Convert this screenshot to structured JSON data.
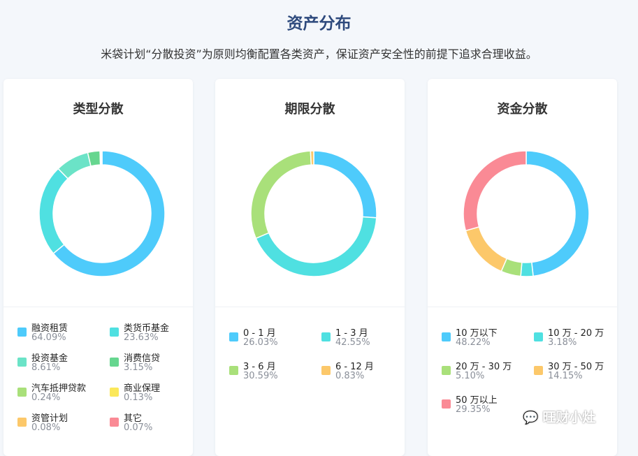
{
  "header": {
    "title": "资产分布",
    "subtitle": "米袋计划“分散投资”为原则均衡配置各类资产，保证资产安全性的前提下追求合理收益。"
  },
  "cards": [
    {
      "title": "类型分散",
      "legend": [
        {
          "label": "融资租赁",
          "pct": "64.09%",
          "color": "#4ecbfb"
        },
        {
          "label": "类货币基金",
          "pct": "23.63%",
          "color": "#4fe0e1"
        },
        {
          "label": "投资基金",
          "pct": "8.61%",
          "color": "#6be3c7"
        },
        {
          "label": "消费信贷",
          "pct": "3.15%",
          "color": "#66d68f"
        },
        {
          "label": "汽车抵押贷款",
          "pct": "0.24%",
          "color": "#a9e07a"
        },
        {
          "label": "商业保理",
          "pct": "0.13%",
          "color": "#fbe85a"
        },
        {
          "label": "资管计划",
          "pct": "0.08%",
          "color": "#fcc86a"
        },
        {
          "label": "其它",
          "pct": "0.07%",
          "color": "#fa8a95"
        }
      ]
    },
    {
      "title": "期限分散",
      "legend": [
        {
          "label": "0 - 1 月",
          "pct": "26.03%",
          "color": "#4ecbfb"
        },
        {
          "label": "1 - 3 月",
          "pct": "42.55%",
          "color": "#4fe0e1"
        },
        {
          "label": "3 - 6 月",
          "pct": "30.59%",
          "color": "#a9e07a"
        },
        {
          "label": "6 - 12 月",
          "pct": "0.83%",
          "color": "#fcc86a"
        }
      ]
    },
    {
      "title": "资金分散",
      "legend": [
        {
          "label": "10 万以下",
          "pct": "48.22%",
          "color": "#4ecbfb"
        },
        {
          "label": "10 万 - 20 万",
          "pct": "3.18%",
          "color": "#4fe0e1"
        },
        {
          "label": "20 万 - 30 万",
          "pct": "5.10%",
          "color": "#a9e07a"
        },
        {
          "label": "30 万 - 50 万",
          "pct": "14.15%",
          "color": "#fcc86a"
        },
        {
          "label": "50 万以上",
          "pct": "29.35%",
          "color": "#fa8a95"
        }
      ]
    }
  ],
  "watermark": {
    "text": "旺财小灶",
    "icon": "wechat-icon"
  }
}
